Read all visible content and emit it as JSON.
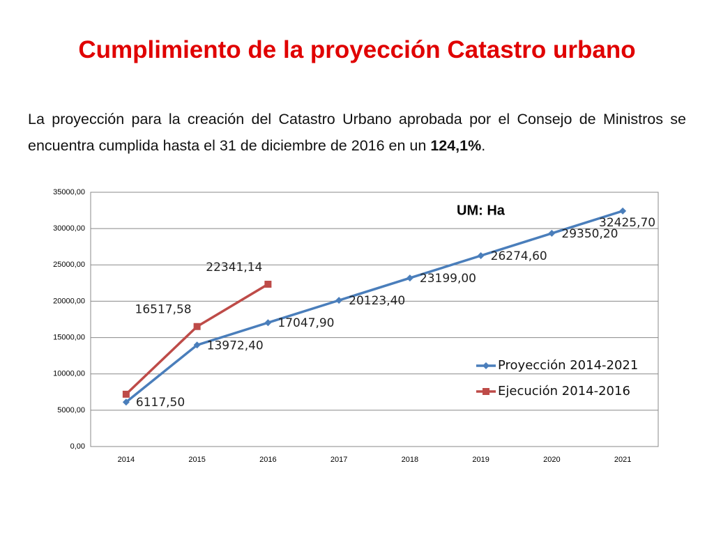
{
  "header": {
    "title": "Cumplimiento de la proyección Catastro urbano"
  },
  "paragraph": [
    "La proyección para la creación del Catastro Urbano aprobada por el Consejo de Ministros se encuentra cumplida hasta el 31 de diciembre de 2016 en un ",
    "124,1%",
    "."
  ],
  "chart_data": {
    "type": "line",
    "annotation": "UM: Ha",
    "categories": [
      "2014",
      "2015",
      "2016",
      "2017",
      "2018",
      "2019",
      "2020",
      "2021"
    ],
    "series": [
      {
        "name": "Proyección 2014-2021",
        "color": "#4a7ebb",
        "marker": "diamond",
        "values": [
          6117.5,
          13972.4,
          17047.9,
          20123.4,
          23199.0,
          26274.6,
          29350.2,
          32425.7
        ],
        "value_labels": [
          "6117,50",
          "13972,40",
          "17047,90",
          "20123,40",
          "23199,00",
          "26274,60",
          "29350,20",
          "32425,70"
        ]
      },
      {
        "name": "Ejecución 2014-2016",
        "color": "#be4b48",
        "marker": "square",
        "values": [
          7200,
          16517.58,
          22341.14,
          null,
          null,
          null,
          null,
          null
        ],
        "value_labels": [
          null,
          "16517,58",
          "22341,14",
          null,
          null,
          null,
          null,
          null
        ]
      }
    ],
    "ylim": [
      0,
      35000
    ],
    "yticks": [
      {
        "value": 0,
        "label": "0,00"
      },
      {
        "value": 5000,
        "label": "5000,00"
      },
      {
        "value": 10000,
        "label": "10000,00"
      },
      {
        "value": 15000,
        "label": "15000,00"
      },
      {
        "value": 20000,
        "label": "20000,00"
      },
      {
        "value": 25000,
        "label": "25000,00"
      },
      {
        "value": 30000,
        "label": "30000,00"
      },
      {
        "value": 35000,
        "label": "35000,00"
      }
    ],
    "grid": true,
    "legend": "right"
  }
}
